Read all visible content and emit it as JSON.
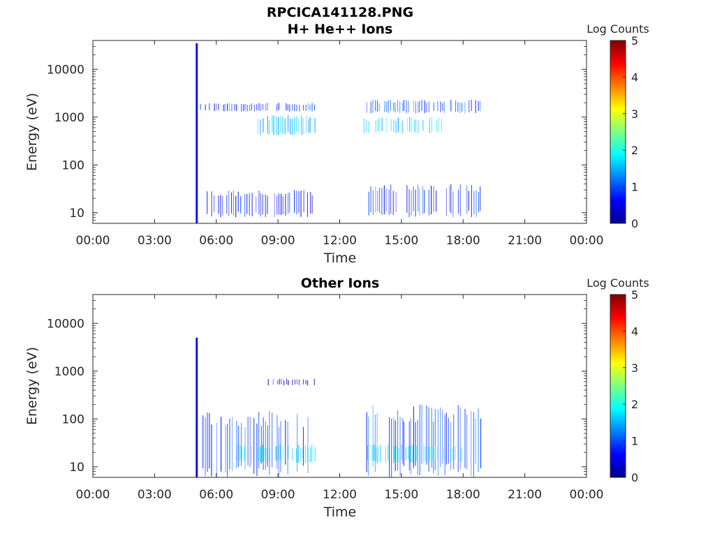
{
  "figure": {
    "title": "RPCICA141128.PNG"
  },
  "chart_data": [
    {
      "type": "heatmap",
      "title": "H+ He++ Ions",
      "xlabel": "Time",
      "ylabel": "Energy (eV)",
      "y_scale": "log",
      "xlim": [
        "00:00",
        "24:00"
      ],
      "xlim_hours": [
        0,
        24
      ],
      "ylim": [
        6,
        40000
      ],
      "x_ticks": [
        "00:00",
        "03:00",
        "06:00",
        "09:00",
        "12:00",
        "15:00",
        "18:00",
        "21:00",
        "00:00"
      ],
      "y_ticks": [
        "10",
        "100",
        "1000",
        "10000"
      ],
      "y_tick_values": [
        10,
        100,
        1000,
        10000
      ],
      "colorbar": {
        "label": "Log Counts",
        "min": 0,
        "max": 5,
        "ticks": [
          "0",
          "1",
          "2",
          "3",
          "4",
          "5"
        ],
        "colormap": "jet"
      },
      "grid": false,
      "data_intervals_hours": [
        [
          5.0,
          10.85
        ],
        [
          13.15,
          18.9
        ]
      ],
      "features": [
        {
          "t_start": 5.0,
          "t_end": 5.1,
          "e_min": 6,
          "e_max": 35000,
          "log_counts": 0.6
        },
        {
          "t_start": 5.2,
          "t_end": 10.85,
          "e_min": 1300,
          "e_max": 2000,
          "log_counts": 0.8
        },
        {
          "t_start": 13.15,
          "t_end": 18.9,
          "e_min": 1200,
          "e_max": 2300,
          "log_counts": 1.0
        },
        {
          "t_start": 8.0,
          "t_end": 10.85,
          "e_min": 400,
          "e_max": 1100,
          "log_counts": 1.5
        },
        {
          "t_start": 13.15,
          "t_end": 17.0,
          "e_min": 450,
          "e_max": 1000,
          "log_counts": 1.6
        },
        {
          "t_start": 5.5,
          "t_end": 10.85,
          "e_min": 8,
          "e_max": 30,
          "log_counts": 0.7
        },
        {
          "t_start": 13.15,
          "t_end": 18.9,
          "e_min": 8,
          "e_max": 40,
          "log_counts": 0.8
        }
      ]
    },
    {
      "type": "heatmap",
      "title": "Other Ions",
      "xlabel": "Time",
      "ylabel": "Energy (eV)",
      "y_scale": "log",
      "xlim": [
        "00:00",
        "24:00"
      ],
      "xlim_hours": [
        0,
        24
      ],
      "ylim": [
        6,
        40000
      ],
      "x_ticks": [
        "00:00",
        "03:00",
        "06:00",
        "09:00",
        "12:00",
        "15:00",
        "18:00",
        "21:00",
        "00:00"
      ],
      "y_ticks": [
        "10",
        "100",
        "1000",
        "10000"
      ],
      "y_tick_values": [
        10,
        100,
        1000,
        10000
      ],
      "colorbar": {
        "label": "Log Counts",
        "min": 0,
        "max": 5,
        "ticks": [
          "0",
          "1",
          "2",
          "3",
          "4",
          "5"
        ],
        "colormap": "jet"
      },
      "grid": false,
      "data_intervals_hours": [
        [
          5.0,
          10.85
        ],
        [
          13.15,
          18.9
        ]
      ],
      "features": [
        {
          "t_start": 5.0,
          "t_end": 5.1,
          "e_min": 6,
          "e_max": 5000,
          "log_counts": 0.5
        },
        {
          "t_start": 5.2,
          "t_end": 10.85,
          "e_min": 6,
          "e_max": 150,
          "log_counts": 0.9
        },
        {
          "t_start": 13.15,
          "t_end": 18.9,
          "e_min": 6,
          "e_max": 200,
          "log_counts": 1.0
        },
        {
          "t_start": 7.0,
          "t_end": 10.85,
          "e_min": 12,
          "e_max": 30,
          "log_counts": 1.6
        },
        {
          "t_start": 13.3,
          "t_end": 18.0,
          "e_min": 12,
          "e_max": 30,
          "log_counts": 1.8
        },
        {
          "t_start": 8.5,
          "t_end": 10.85,
          "e_min": 500,
          "e_max": 700,
          "log_counts": 0.4
        }
      ]
    }
  ]
}
